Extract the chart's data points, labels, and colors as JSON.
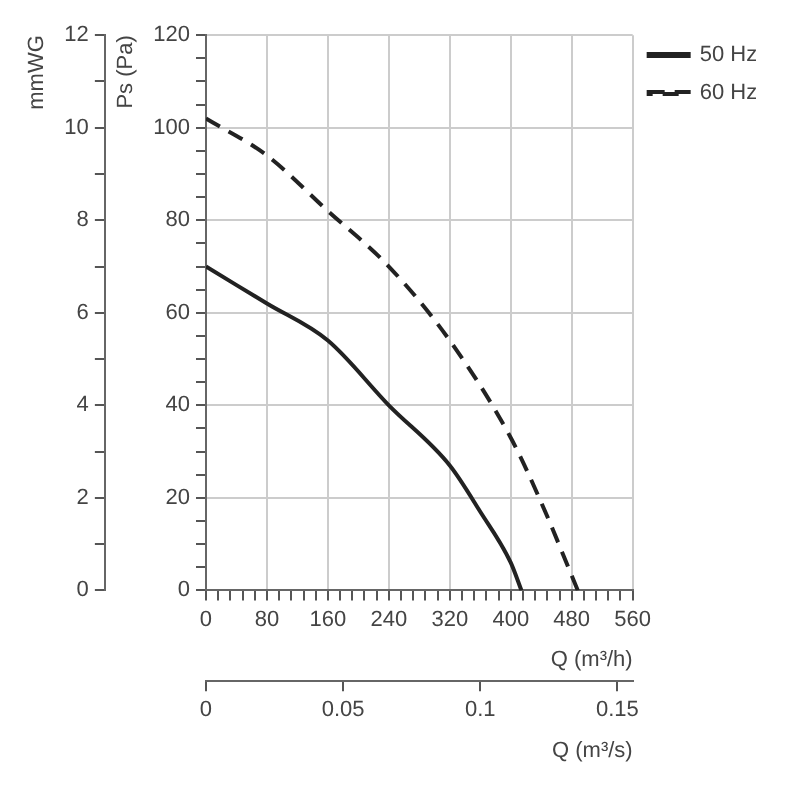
{
  "chart_data": {
    "type": "line",
    "xlabel": "Q (m³/h)",
    "ylabel": "Ps (Pa)",
    "y2label": "mmWG",
    "x2label": "Q (m³/s)",
    "xlim": [
      0,
      560
    ],
    "xticks": [
      0,
      {
        "value": 16,
        "label": null
      },
      {
        "value": 32,
        "label": null
      },
      {
        "value": 48,
        "label": null
      },
      {
        "value": 64,
        "label": null
      },
      80,
      {
        "value": 96,
        "label": null
      },
      {
        "value": 112,
        "label": null
      },
      {
        "value": 128,
        "label": null
      },
      {
        "value": 144,
        "label": null
      },
      160,
      {
        "value": 176,
        "label": null
      },
      {
        "value": 192,
        "label": null
      },
      {
        "value": 208,
        "label": null
      },
      {
        "value": 224,
        "label": null
      },
      240,
      {
        "value": 256,
        "label": null
      },
      {
        "value": 272,
        "label": null
      },
      {
        "value": 288,
        "label": null
      },
      {
        "value": 304,
        "label": null
      },
      320,
      {
        "value": 336,
        "label": null
      },
      {
        "value": 352,
        "label": null
      },
      {
        "value": 368,
        "label": null
      },
      {
        "value": 384,
        "label": null
      },
      400,
      {
        "value": 416,
        "label": null
      },
      {
        "value": 432,
        "label": null
      },
      {
        "value": 448,
        "label": null
      },
      {
        "value": 464,
        "label": null
      },
      480,
      {
        "value": 496,
        "label": null
      },
      {
        "value": 512,
        "label": null
      },
      {
        "value": 528,
        "label": null
      },
      {
        "value": 544,
        "label": null
      },
      560
    ],
    "ylim": [
      0,
      120
    ],
    "yticks": [
      0,
      {
        "value": 5,
        "label": null
      },
      {
        "value": 10,
        "label": null
      },
      {
        "value": 15,
        "label": null
      },
      20,
      {
        "value": 25,
        "label": null
      },
      {
        "value": 30,
        "label": null
      },
      {
        "value": 35,
        "label": null
      },
      40,
      {
        "value": 45,
        "label": null
      },
      {
        "value": 50,
        "label": null
      },
      {
        "value": 55,
        "label": null
      },
      60,
      {
        "value": 65,
        "label": null
      },
      {
        "value": 70,
        "label": null
      },
      {
        "value": 75,
        "label": null
      },
      80,
      {
        "value": 85,
        "label": null
      },
      {
        "value": 90,
        "label": null
      },
      {
        "value": 95,
        "label": null
      },
      100,
      {
        "value": 105,
        "label": null
      },
      {
        "value": 110,
        "label": null
      },
      {
        "value": 115,
        "label": null
      },
      120
    ],
    "y2lim": [
      0,
      12
    ],
    "y2ticks": [
      0,
      {
        "value": 1,
        "label": null
      },
      2,
      {
        "value": 3,
        "label": null
      },
      4,
      {
        "value": 5,
        "label": null
      },
      6,
      {
        "value": 7,
        "label": null
      },
      8,
      {
        "value": 9,
        "label": null
      },
      10,
      {
        "value": 11,
        "label": null
      },
      12
    ],
    "x2lim": [
      0,
      0.1556
    ],
    "x2ticks": [
      0,
      0.05,
      0.1,
      0.15
    ],
    "grid": true,
    "legend": "top right",
    "marker": "none",
    "series": [
      {
        "name": "50 Hz",
        "color": "#222222",
        "line_style": "solid",
        "x": [
          0,
          80,
          160,
          240,
          320,
          360,
          400,
          414
        ],
        "values": [
          70,
          62,
          54,
          40,
          27,
          17,
          6,
          0
        ]
      },
      {
        "name": "60 Hz",
        "color": "#222222",
        "line_style": "dashed",
        "x": [
          0,
          80,
          160,
          240,
          320,
          400,
          440,
          488
        ],
        "values": [
          102,
          94,
          82,
          70,
          54,
          33,
          19,
          0
        ]
      }
    ]
  }
}
